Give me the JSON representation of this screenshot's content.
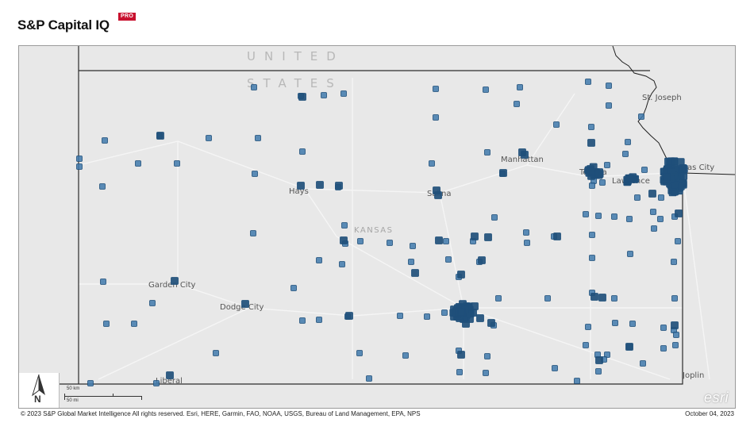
{
  "header": {
    "brand_name": "S&P Capital IQ",
    "brand_badge": "PRO"
  },
  "map": {
    "country_label_line1": "UNITED",
    "country_label_line2": "STATES",
    "state_label": "KANSAS",
    "cities": [
      "St. Joseph",
      "Manhattan",
      "Topeka",
      "Lawrence",
      "Kansas City",
      "Hays",
      "Salina",
      "Garden City",
      "Dodge City",
      "Liberal",
      "Joplin"
    ],
    "marker_color": "#3f79ab",
    "marker_border_color": "#1f4f7a",
    "land_color": "#e8e8e8",
    "border_color": "#2b2b2b"
  },
  "north_arrow": {
    "label": "N"
  },
  "scale_bar": {
    "km_label": "50 km",
    "mi_label": "50 mi"
  },
  "esri_logo": "esri",
  "footer": {
    "attribution": "© 2023 S&P Global Market Intelligence All rights reserved. Esri, HERE, Garmin, FAO, NOAA, USGS, Bureau of Land Management, EPA, NPS",
    "date": "October 04, 2023"
  }
}
